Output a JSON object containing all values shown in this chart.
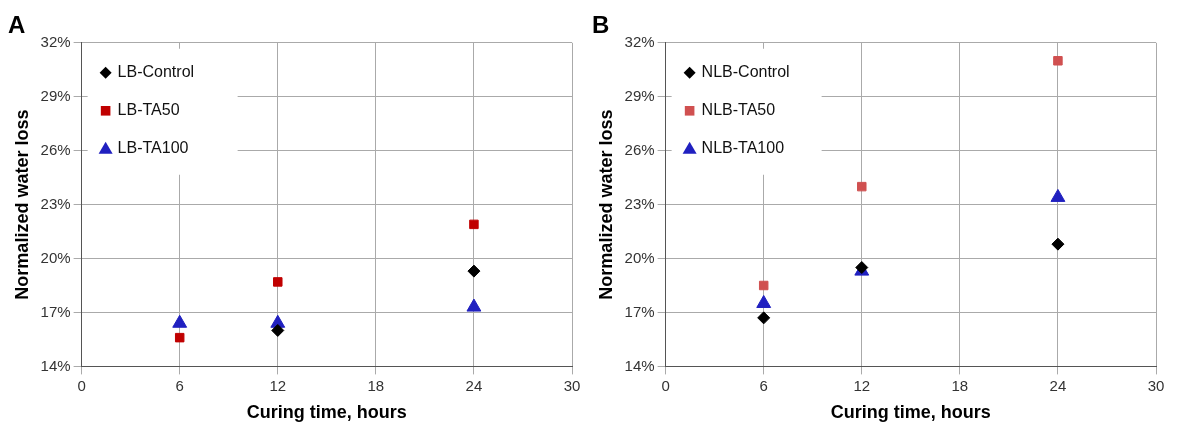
{
  "chart_data": [
    {
      "type": "scatter",
      "title": "A",
      "xlabel": "Curing time, hours",
      "ylabel": "Normalized water loss",
      "x": [
        6,
        12,
        24
      ],
      "xlim": [
        0,
        30
      ],
      "xticks": [
        0,
        6,
        12,
        18,
        24,
        30
      ],
      "ylim": [
        14,
        32
      ],
      "yticks": [
        {
          "value": 14,
          "label": "14%"
        },
        {
          "value": 17,
          "label": "17%"
        },
        {
          "value": 20,
          "label": "20%"
        },
        {
          "value": 23,
          "label": "23%"
        },
        {
          "value": 26,
          "label": "26%"
        },
        {
          "value": 29,
          "label": "29%"
        },
        {
          "value": 32,
          "label": "32%"
        }
      ],
      "grid": true,
      "legend": "top left",
      "series": [
        {
          "name": "LB-Control",
          "color": "#000000",
          "marker": "diamond",
          "values": [
            null,
            16.0,
            19.3
          ]
        },
        {
          "name": "LB-TA50",
          "color": "#c00000",
          "marker": "square",
          "values": [
            15.6,
            18.7,
            21.9
          ]
        },
        {
          "name": "LB-TA100",
          "color": "#2020c0",
          "marker": "triangle",
          "values": [
            16.4,
            16.4,
            17.3
          ]
        }
      ]
    },
    {
      "type": "scatter",
      "title": "B",
      "xlabel": "Curing time, hours",
      "ylabel": "Normalized water loss",
      "x": [
        6,
        12,
        24
      ],
      "xlim": [
        0,
        30
      ],
      "xticks": [
        0,
        6,
        12,
        18,
        24,
        30
      ],
      "ylim": [
        14,
        32
      ],
      "yticks": [
        {
          "value": 14,
          "label": "14%"
        },
        {
          "value": 17,
          "label": "17%"
        },
        {
          "value": 20,
          "label": "20%"
        },
        {
          "value": 23,
          "label": "23%"
        },
        {
          "value": 26,
          "label": "26%"
        },
        {
          "value": 29,
          "label": "29%"
        },
        {
          "value": 32,
          "label": "32%"
        }
      ],
      "grid": true,
      "legend": "top left",
      "series": [
        {
          "name": "NLB-Control",
          "color": "#000000",
          "marker": "diamond",
          "values": [
            16.7,
            19.5,
            20.8
          ]
        },
        {
          "name": "NLB-TA50",
          "color": "#d05050",
          "marker": "square",
          "values": [
            18.5,
            24.0,
            31.0
          ]
        },
        {
          "name": "NLB-TA100",
          "color": "#2020c0",
          "marker": "triangle",
          "values": [
            17.5,
            19.3,
            23.4
          ]
        }
      ]
    }
  ]
}
